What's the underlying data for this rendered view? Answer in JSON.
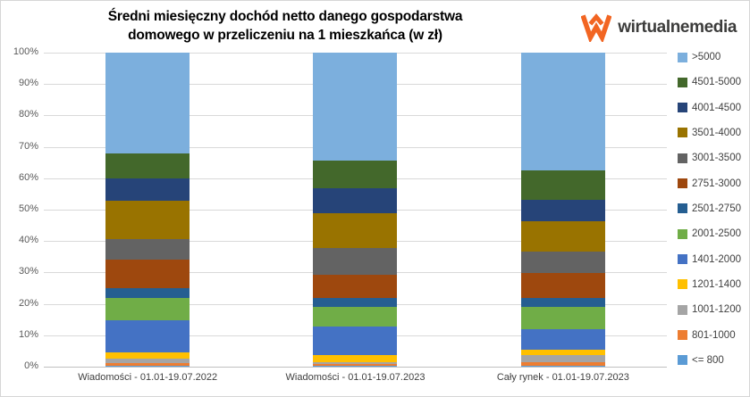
{
  "header": {
    "title_line1": "Średni miesięczny dochód netto danego gospodarstwa",
    "title_line2": "domowego w przeliczeniu na 1 mieszkańca (w zł)"
  },
  "logo": {
    "text": "wirtualnemedia",
    "mark_color": "#f26522",
    "text_color": "#3c3c3b"
  },
  "chart_data": {
    "type": "bar",
    "stacked": true,
    "units": "percent of audience",
    "title": "Średni miesięczny dochód netto danego gospodarstwa domowego w przeliczeniu na 1 mieszkańca (w zł)",
    "categories": [
      "Wiadomości - 01.01-19.07.2022",
      "Wiadomości - 01.01-19.07.2023",
      "Cały rynek - 01.01-19.07.2023"
    ],
    "series": [
      {
        "name": "<= 800",
        "color": "#5B9BD5",
        "values": [
          0.2,
          0.2,
          0.4
        ]
      },
      {
        "name": "801-1000",
        "color": "#ED7D31",
        "values": [
          1.0,
          0.7,
          1.1
        ]
      },
      {
        "name": "1001-1200",
        "color": "#A5A5A5",
        "values": [
          1.4,
          0.6,
          2.1
        ]
      },
      {
        "name": "1201-1400",
        "color": "#FFC000",
        "values": [
          1.9,
          2.3,
          1.7
        ]
      },
      {
        "name": "1401-2000",
        "color": "#4472C4",
        "values": [
          10.4,
          9.0,
          6.6
        ]
      },
      {
        "name": "2001-2500",
        "color": "#70AD47",
        "values": [
          7.1,
          6.3,
          7.1
        ]
      },
      {
        "name": "2501-2750",
        "color": "#255E91",
        "values": [
          3.1,
          2.8,
          2.8
        ]
      },
      {
        "name": "2751-3000",
        "color": "#9E480E",
        "values": [
          8.9,
          7.4,
          8.0
        ]
      },
      {
        "name": "3001-3500",
        "color": "#636363",
        "values": [
          6.7,
          8.5,
          6.9
        ]
      },
      {
        "name": "3501-4000",
        "color": "#997300",
        "values": [
          12.2,
          11.2,
          9.6
        ]
      },
      {
        "name": "4001-4500",
        "color": "#264478",
        "values": [
          7.1,
          7.9,
          6.8
        ]
      },
      {
        "name": "4501-5000",
        "color": "#43682B",
        "values": [
          7.9,
          8.8,
          9.5
        ]
      },
      {
        "name": ">5000",
        "color": "#7CAFDD",
        "values": [
          32.1,
          34.3,
          37.4
        ]
      }
    ],
    "stack_order": "bottom-to-top as listed",
    "legend_position": "right",
    "legend_order": "reversed (top entry = top stack segment)",
    "ylim": [
      0,
      100
    ],
    "yticks": [
      "0%",
      "10%",
      "20%",
      "30%",
      "40%",
      "50%",
      "60%",
      "70%",
      "80%",
      "90%",
      "100%"
    ],
    "grid": true
  }
}
